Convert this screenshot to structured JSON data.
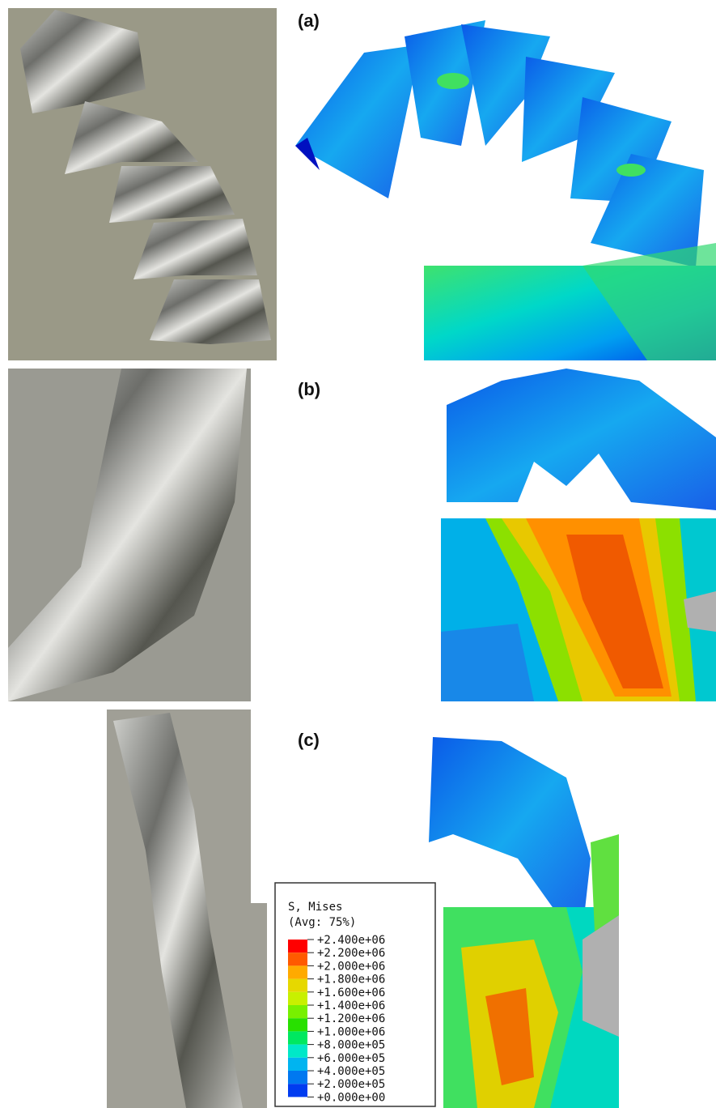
{
  "panels": [
    {
      "label": "(a)"
    },
    {
      "label": "(b)"
    },
    {
      "label": "(c)"
    }
  ],
  "legend": {
    "title": "S, Mises",
    "subtitle": "(Avg: 75%)",
    "labels": [
      "+2.400e+06",
      "+2.200e+06",
      "+2.000e+06",
      "+1.800e+06",
      "+1.600e+06",
      "+1.400e+06",
      "+1.200e+06",
      "+1.000e+06",
      "+8.000e+05",
      "+6.000e+05",
      "+4.000e+05",
      "+2.000e+05",
      "+0.000e+00"
    ],
    "colors": [
      "#ff0000",
      "#ff5a00",
      "#ffaa00",
      "#e6d800",
      "#c8f000",
      "#78f000",
      "#28e000",
      "#00e860",
      "#00e8c8",
      "#00b4f0",
      "#0078f0",
      "#003cf0",
      "#0000e0"
    ]
  }
}
